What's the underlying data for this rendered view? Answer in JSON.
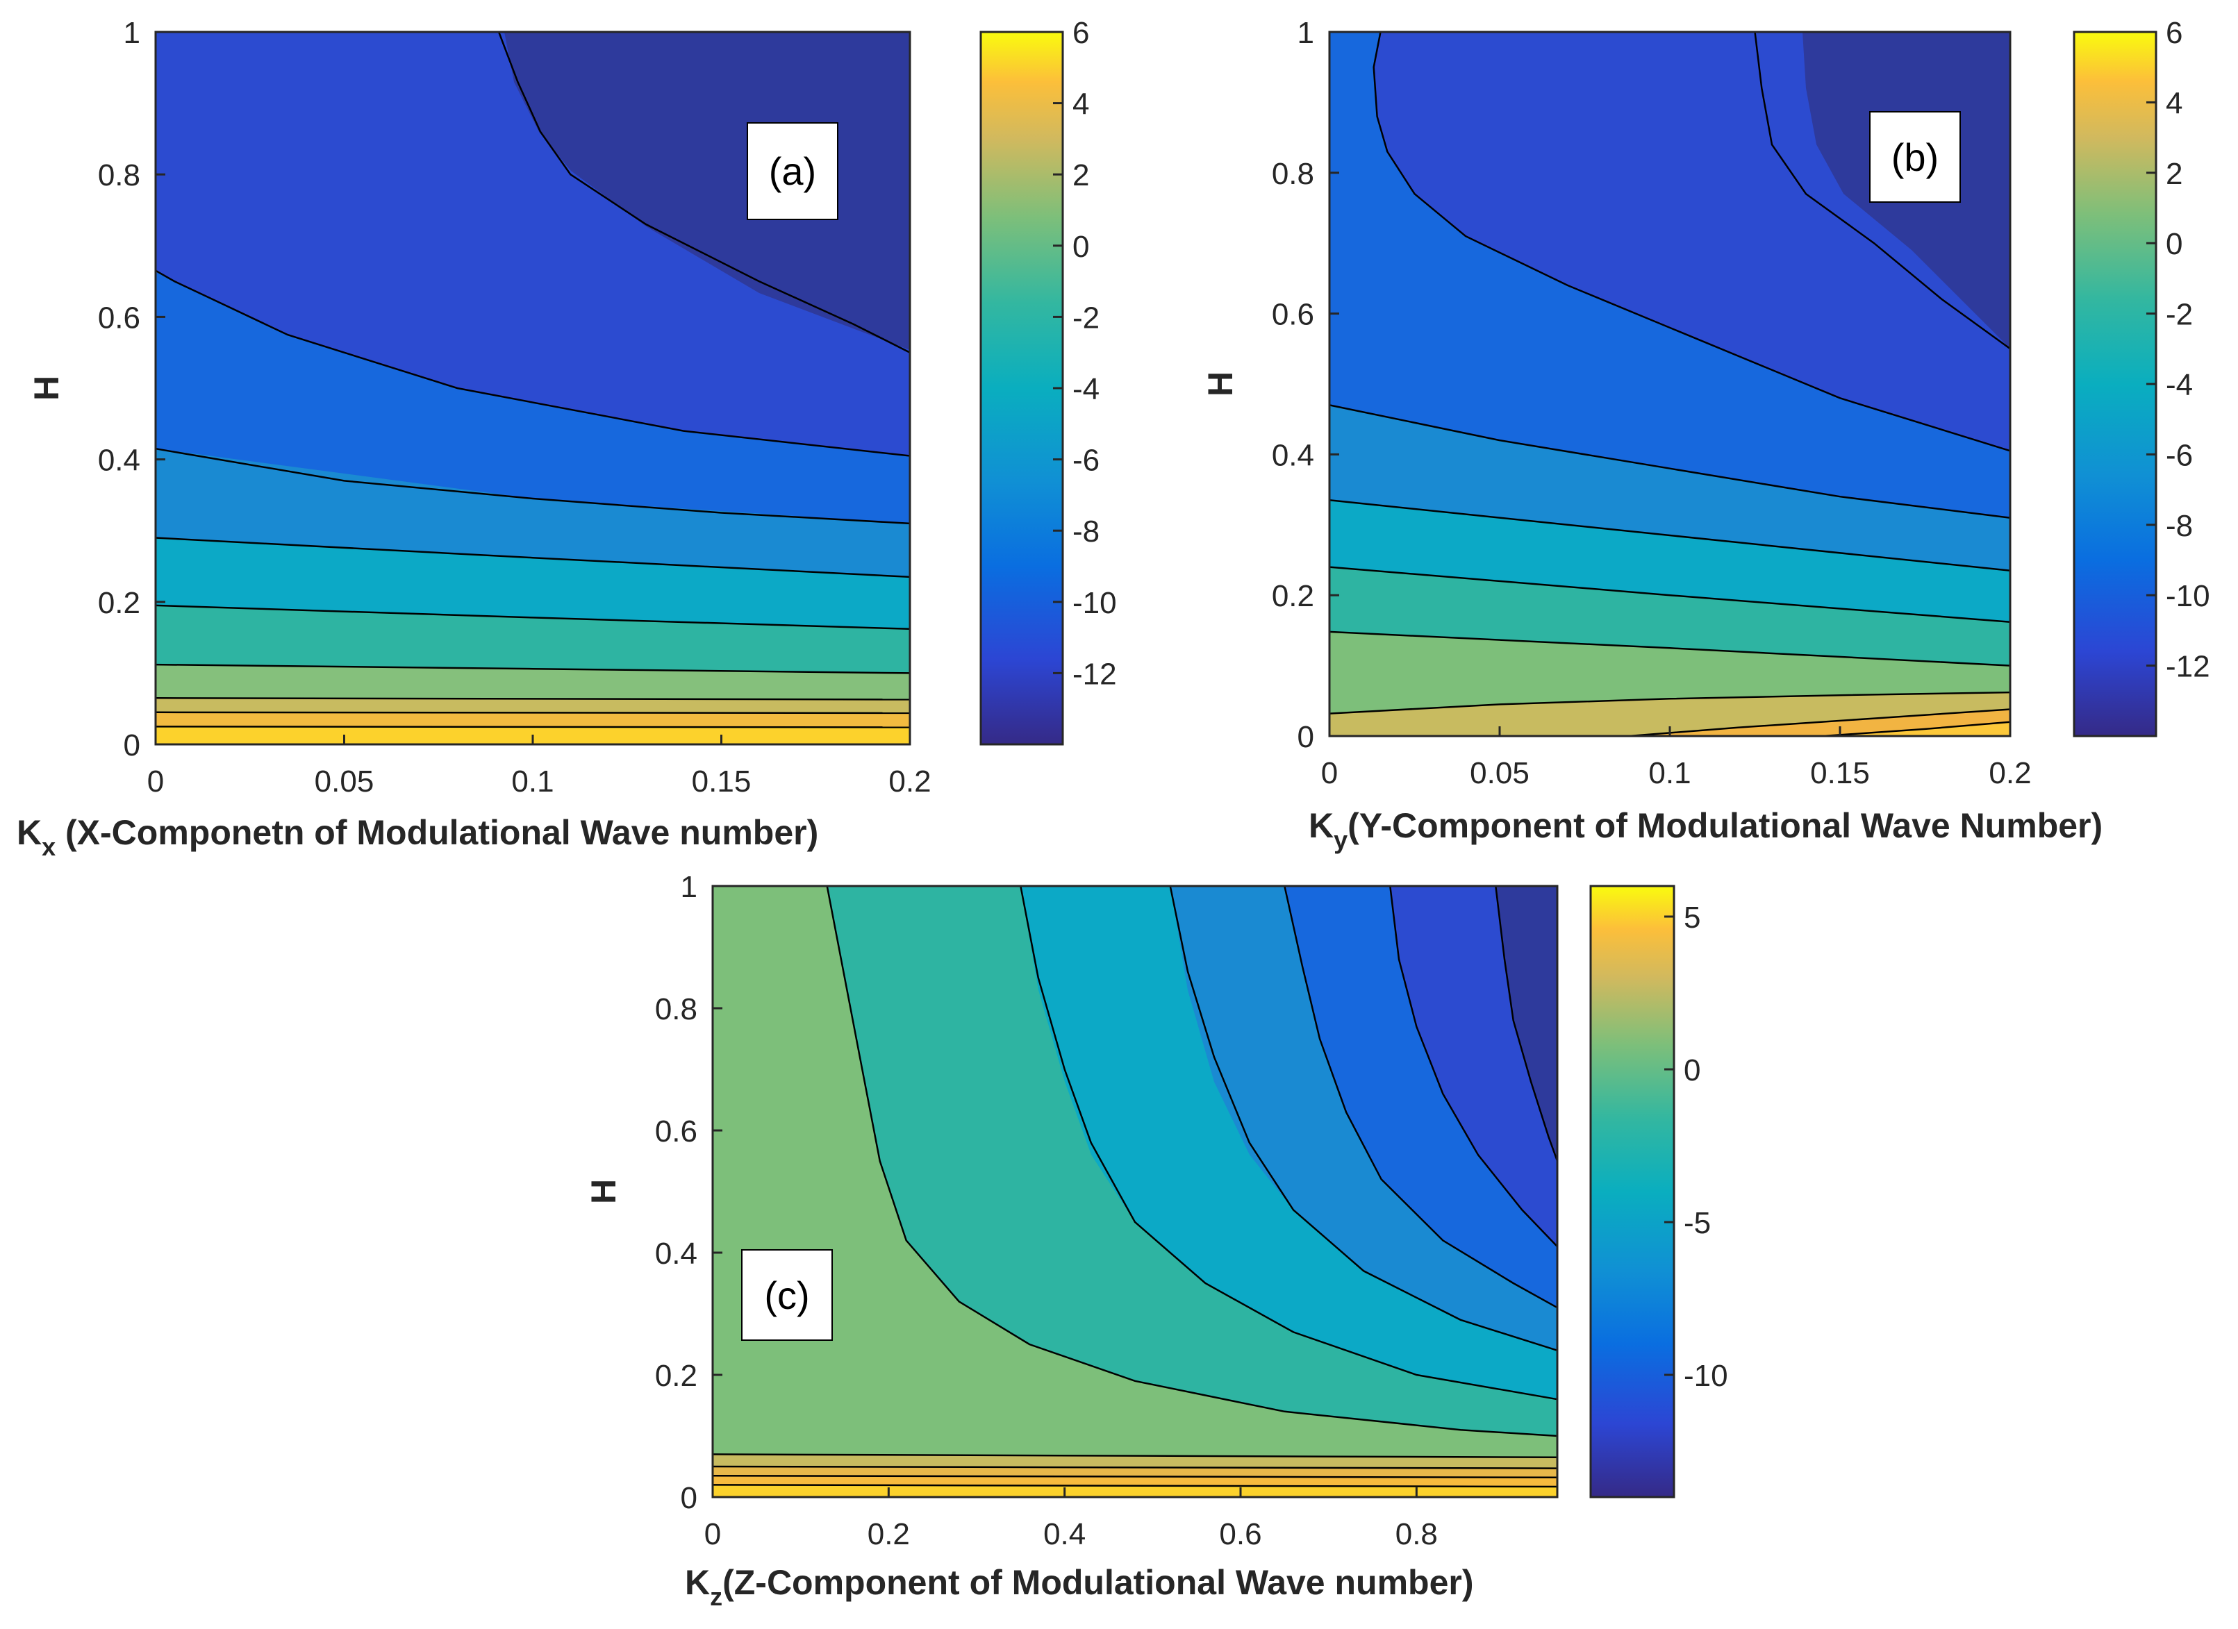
{
  "chart_data": [
    {
      "type": "contourf",
      "panel": "(a)",
      "xlabel_main": "K",
      "xlabel_sub": "x",
      "xlabel_rest": " (X-Componetn of Modulational Wave number)",
      "ylabel": "H",
      "xlim": [
        0,
        0.2
      ],
      "ylim": [
        0,
        1
      ],
      "xticks": [
        "0",
        "0.05",
        "0.1",
        "0.15",
        "0.2"
      ],
      "yticks": [
        "0",
        "0.2",
        "0.4",
        "0.6",
        "0.8",
        "1"
      ],
      "colorbar": {
        "min": -14,
        "max": 6,
        "ticks": [
          "6",
          "4",
          "2",
          "0",
          "-2",
          "-4",
          "-6",
          "-8",
          "-10",
          "-12"
        ]
      },
      "contour_lines": [
        {
          "level": -12,
          "points": [
            [
              0.091,
              1.0
            ],
            [
              0.096,
              0.93
            ],
            [
              0.102,
              0.86
            ],
            [
              0.11,
              0.8
            ],
            [
              0.13,
              0.73
            ],
            [
              0.16,
              0.65
            ],
            [
              0.185,
              0.59
            ],
            [
              0.2,
              0.55
            ]
          ]
        },
        {
          "level": -10,
          "points": [
            [
              0,
              0.665
            ],
            [
              0.005,
              0.65
            ],
            [
              0.015,
              0.625
            ],
            [
              0.035,
              0.575
            ],
            [
              0.08,
              0.5
            ],
            [
              0.14,
              0.44
            ],
            [
              0.2,
              0.405
            ]
          ]
        },
        {
          "level": -8,
          "points": [
            [
              0,
              0.415
            ],
            [
              0.05,
              0.37
            ],
            [
              0.1,
              0.345
            ],
            [
              0.15,
              0.325
            ],
            [
              0.2,
              0.31
            ]
          ]
        },
        {
          "level": -6,
          "points": [
            [
              0,
              0.29
            ],
            [
              0.1,
              0.262
            ],
            [
              0.2,
              0.235
            ]
          ]
        },
        {
          "level": -4,
          "points": [
            [
              0,
              0.195
            ],
            [
              0.1,
              0.178
            ],
            [
              0.2,
              0.162
            ]
          ]
        },
        {
          "level": -2,
          "points": [
            [
              0,
              0.112
            ],
            [
              0.1,
              0.106
            ],
            [
              0.2,
              0.1
            ]
          ]
        },
        {
          "level": 0,
          "points": [
            [
              0,
              0.065
            ],
            [
              0.2,
              0.063
            ]
          ]
        },
        {
          "level": 2,
          "points": [
            [
              0,
              0.045
            ],
            [
              0.2,
              0.044
            ]
          ]
        },
        {
          "level": 4,
          "points": [
            [
              0,
              0.025
            ],
            [
              0.2,
              0.024
            ]
          ]
        }
      ]
    },
    {
      "type": "contourf",
      "panel": "(b)",
      "xlabel_main": "K",
      "xlabel_sub": "y",
      "xlabel_rest": "(Y-Component of Modulational Wave Number)",
      "ylabel": "H",
      "xlim": [
        0,
        0.2
      ],
      "ylim": [
        0,
        1
      ],
      "xticks": [
        "0",
        "0.05",
        "0.1",
        "0.15",
        "0.2"
      ],
      "yticks": [
        "0",
        "0.2",
        "0.4",
        "0.6",
        "0.8",
        "1"
      ],
      "colorbar": {
        "min": -14,
        "max": 6,
        "ticks": [
          "6",
          "4",
          "2",
          "0",
          "-2",
          "-4",
          "-6",
          "-8",
          "-10",
          "-12"
        ]
      },
      "contour_lines": [
        {
          "level": -14,
          "points": [
            [
              0.125,
              1.0
            ],
            [
              0.127,
              0.92
            ],
            [
              0.13,
              0.84
            ],
            [
              0.14,
              0.77
            ],
            [
              0.16,
              0.7
            ],
            [
              0.18,
              0.62
            ],
            [
              0.2,
              0.55
            ]
          ]
        },
        {
          "level": -12,
          "points": [
            [
              0.015,
              1.0
            ],
            [
              0.013,
              0.95
            ],
            [
              0.014,
              0.88
            ],
            [
              0.017,
              0.83
            ],
            [
              0.025,
              0.77
            ],
            [
              0.04,
              0.71
            ],
            [
              0.07,
              0.64
            ],
            [
              0.11,
              0.56
            ],
            [
              0.15,
              0.48
            ],
            [
              0.2,
              0.405
            ]
          ]
        },
        {
          "level": -10,
          "points": [
            [
              0,
              0.47
            ],
            [
              0.05,
              0.42
            ],
            [
              0.1,
              0.38
            ],
            [
              0.15,
              0.34
            ],
            [
              0.2,
              0.31
            ]
          ]
        },
        {
          "level": -8,
          "points": [
            [
              0,
              0.335
            ],
            [
              0.1,
              0.285
            ],
            [
              0.2,
              0.235
            ]
          ]
        },
        {
          "level": -6,
          "points": [
            [
              0,
              0.24
            ],
            [
              0.1,
              0.2
            ],
            [
              0.2,
              0.162
            ]
          ]
        },
        {
          "level": -4,
          "points": [
            [
              0,
              0.148
            ],
            [
              0.1,
              0.125
            ],
            [
              0.2,
              0.1
            ]
          ]
        },
        {
          "level": -2,
          "points": [
            [
              0,
              0.032
            ],
            [
              0.05,
              0.045
            ],
            [
              0.1,
              0.053
            ],
            [
              0.15,
              0.058
            ],
            [
              0.2,
              0.062
            ]
          ]
        },
        {
          "level": 0,
          "points": [
            [
              0.088,
              0.0
            ],
            [
              0.12,
              0.012
            ],
            [
              0.16,
              0.025
            ],
            [
              0.2,
              0.038
            ]
          ]
        },
        {
          "level": 2,
          "points": [
            [
              0.145,
              0.0
            ],
            [
              0.175,
              0.01
            ],
            [
              0.2,
              0.02
            ]
          ]
        }
      ]
    },
    {
      "type": "contourf",
      "panel": "(c)",
      "xlabel_main": "K",
      "xlabel_sub": "z",
      "xlabel_rest": "(Z-Component of Modulational Wave number)",
      "ylabel": "H",
      "xlim": [
        0,
        0.96
      ],
      "ylim": [
        0,
        1
      ],
      "xticks": [
        "0",
        "0.2",
        "0.4",
        "0.6",
        "0.8"
      ],
      "yticks": [
        "0",
        "0.2",
        "0.4",
        "0.6",
        "0.8",
        "1"
      ],
      "colorbar": {
        "min": -14,
        "max": 6,
        "ticks": [
          "5",
          "0",
          "-5",
          "-10"
        ]
      },
      "contour_lines": [
        {
          "level": -4,
          "points": [
            [
              0.13,
              1.0
            ],
            [
              0.15,
              0.85
            ],
            [
              0.17,
              0.7
            ],
            [
              0.19,
              0.55
            ],
            [
              0.22,
              0.42
            ],
            [
              0.28,
              0.32
            ],
            [
              0.36,
              0.25
            ],
            [
              0.48,
              0.19
            ],
            [
              0.65,
              0.14
            ],
            [
              0.85,
              0.11
            ],
            [
              0.96,
              0.1
            ]
          ]
        },
        {
          "level": -6,
          "points": [
            [
              0.35,
              1.0
            ],
            [
              0.37,
              0.85
            ],
            [
              0.4,
              0.7
            ],
            [
              0.43,
              0.58
            ],
            [
              0.48,
              0.45
            ],
            [
              0.56,
              0.35
            ],
            [
              0.66,
              0.27
            ],
            [
              0.8,
              0.2
            ],
            [
              0.96,
              0.16
            ]
          ]
        },
        {
          "level": -8,
          "points": [
            [
              0.52,
              1.0
            ],
            [
              0.54,
              0.86
            ],
            [
              0.57,
              0.72
            ],
            [
              0.61,
              0.58
            ],
            [
              0.66,
              0.47
            ],
            [
              0.74,
              0.37
            ],
            [
              0.85,
              0.29
            ],
            [
              0.96,
              0.24
            ]
          ]
        },
        {
          "level": -10,
          "points": [
            [
              0.65,
              1.0
            ],
            [
              0.67,
              0.87
            ],
            [
              0.69,
              0.75
            ],
            [
              0.72,
              0.63
            ],
            [
              0.76,
              0.52
            ],
            [
              0.83,
              0.42
            ],
            [
              0.91,
              0.35
            ],
            [
              0.96,
              0.31
            ]
          ]
        },
        {
          "level": -12,
          "points": [
            [
              0.77,
              1.0
            ],
            [
              0.78,
              0.88
            ],
            [
              0.8,
              0.77
            ],
            [
              0.83,
              0.66
            ],
            [
              0.87,
              0.56
            ],
            [
              0.92,
              0.47
            ],
            [
              0.96,
              0.41
            ]
          ]
        },
        {
          "level": -14,
          "points": [
            [
              0.89,
              1.0
            ],
            [
              0.9,
              0.88
            ],
            [
              0.91,
              0.78
            ],
            [
              0.93,
              0.68
            ],
            [
              0.95,
              0.59
            ],
            [
              0.96,
              0.55
            ]
          ]
        },
        {
          "level": -2,
          "points": [
            [
              0,
              0.07
            ],
            [
              0.96,
              0.065
            ]
          ]
        },
        {
          "level": 0,
          "points": [
            [
              0,
              0.05
            ],
            [
              0.96,
              0.047
            ]
          ]
        },
        {
          "level": 2,
          "points": [
            [
              0,
              0.035
            ],
            [
              0.96,
              0.032
            ]
          ]
        },
        {
          "level": 4,
          "points": [
            [
              0,
              0.02
            ],
            [
              0.96,
              0.017
            ]
          ]
        }
      ]
    }
  ]
}
